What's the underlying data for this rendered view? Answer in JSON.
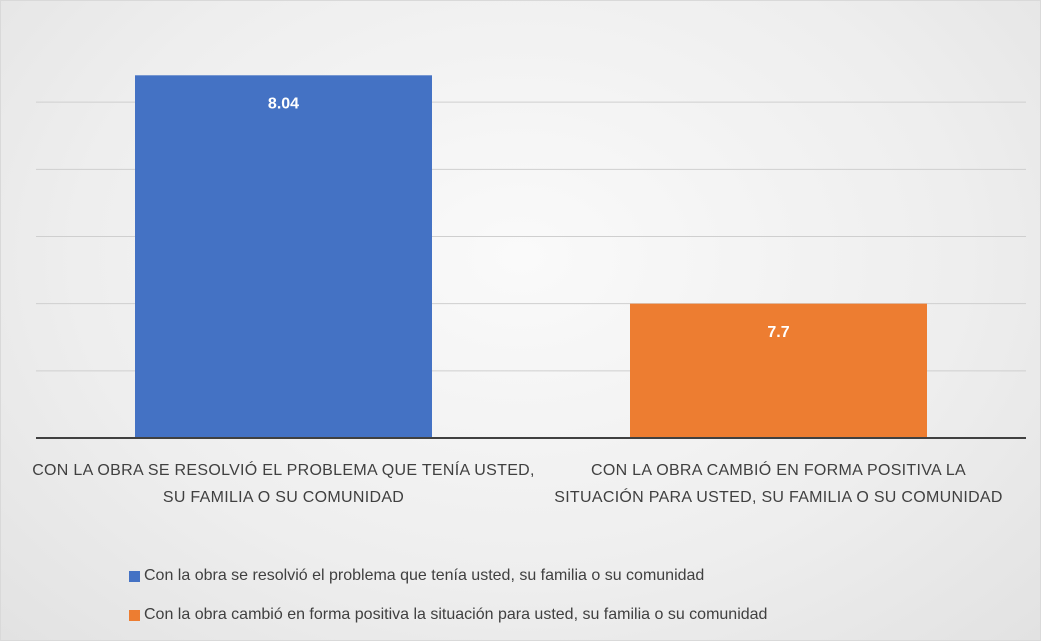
{
  "chart_data": {
    "type": "bar",
    "categories": [
      "CON LA OBRA SE RESOLVIÓ EL PROBLEMA QUE TENÍA USTED, SU FAMILIA O SU COMUNIDAD",
      "CON LA OBRA CAMBIÓ EN FORMA POSITIVA LA SITUACIÓN PARA USTED, SU FAMILIA O SU COMUNIDAD"
    ],
    "series": [
      {
        "name": "Con la obra se resolvió el problema que tenía usted, su familia o su comunidad",
        "color": "#4472c4",
        "values": [
          8.04,
          null
        ]
      },
      {
        "name": "Con la obra cambió en forma positiva la situación para usted, su familia o su comunidad",
        "color": "#ed7d31",
        "values": [
          null,
          7.7
        ]
      }
    ],
    "ylim": [
      7.5,
      8.1
    ],
    "yticks": [
      7.5,
      7.6,
      7.7,
      7.8,
      7.9,
      8.0
    ],
    "grid": true,
    "legend": "bottom"
  }
}
